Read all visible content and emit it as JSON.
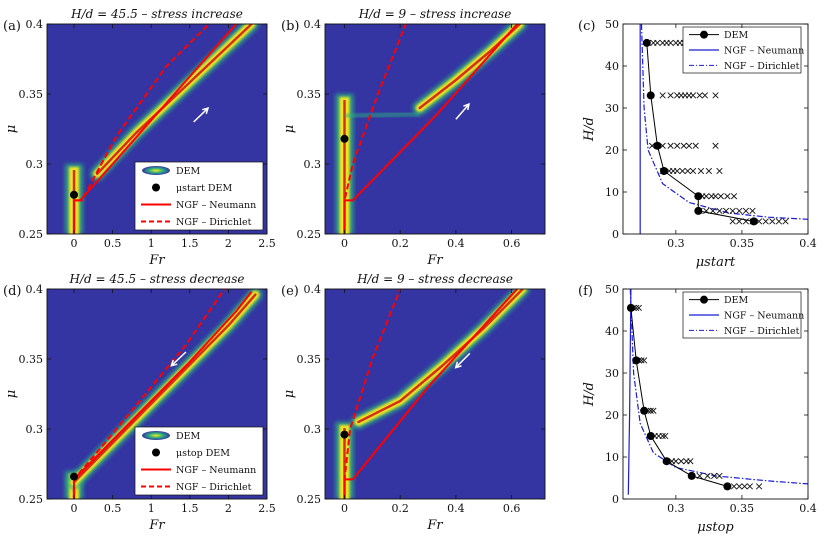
{
  "colors": {
    "background": "#3434a2",
    "dem_band": "#f5e71b",
    "dem_mid": "#2bb07f",
    "dem_core": "#d32f1d",
    "ngf_red": "#ff0000",
    "ngf_blue": "#1c1cd8",
    "arrow": "#ffffff"
  },
  "chart_data": [
    {
      "id": "a",
      "panel_label": "(a)",
      "type": "heatmap",
      "title": "H/d = 45.5 – stress increase",
      "xlabel": "Fr",
      "ylabel": "μ",
      "xlim": [
        -0.35,
        2.5
      ],
      "ylim": [
        0.25,
        0.4
      ],
      "xticks": [
        "0",
        "0.5",
        "1",
        "1.5",
        "2",
        "2.5"
      ],
      "xtick_values": [
        0,
        0.5,
        1,
        1.5,
        2,
        2.5
      ],
      "yticks": [
        "0.25",
        "0.3",
        "0.35",
        "0.4"
      ],
      "ytick_values": [
        0.25,
        0.3,
        0.35,
        0.4
      ],
      "dem_band": [
        [
          0.3,
          0.293
        ],
        [
          0.8,
          0.322
        ],
        [
          1.3,
          0.348
        ],
        [
          1.8,
          0.374
        ],
        [
          2.3,
          0.4
        ]
      ],
      "dem_vertical": {
        "x": 0,
        "y_from": 0.25,
        "y_to": 0.3
      },
      "mu_marker": {
        "x": 0,
        "y": 0.278
      },
      "neumann": [
        [
          0,
          0.25
        ],
        [
          0,
          0.274
        ],
        [
          0.08,
          0.274
        ],
        [
          0.5,
          0.3
        ],
        [
          1.3,
          0.35
        ],
        [
          2.1,
          0.4
        ]
      ],
      "dirichlet": [
        [
          0,
          0.25
        ],
        [
          0,
          0.274
        ],
        [
          0.1,
          0.274
        ],
        [
          0.55,
          0.32
        ],
        [
          1.2,
          0.37
        ],
        [
          1.75,
          0.4
        ]
      ],
      "arrow": {
        "from": [
          1.55,
          0.33
        ],
        "to": [
          1.85,
          0.346
        ]
      },
      "legend": [
        {
          "kind": "blob",
          "label": "DEM"
        },
        {
          "kind": "dot",
          "label": "μstart DEM"
        },
        {
          "kind": "solid",
          "label": "NGF – Neumann"
        },
        {
          "kind": "dash",
          "label": "NGF – Dirichlet"
        }
      ]
    },
    {
      "id": "b",
      "panel_label": "(b)",
      "type": "heatmap",
      "title": "H/d = 9 – stress increase",
      "xlabel": "Fr",
      "ylabel": "μ",
      "xlim": [
        -0.07,
        0.72
      ],
      "ylim": [
        0.25,
        0.4
      ],
      "xticks": [
        "0",
        "0.2",
        "0.4",
        "0.6"
      ],
      "xtick_values": [
        0,
        0.2,
        0.4,
        0.6
      ],
      "yticks": [
        "0.25",
        "0.3",
        "0.35",
        "0.4"
      ],
      "ytick_values": [
        0.25,
        0.3,
        0.35,
        0.4
      ],
      "dem_band": [
        [
          0.27,
          0.34
        ],
        [
          0.4,
          0.36
        ],
        [
          0.52,
          0.38
        ],
        [
          0.63,
          0.4
        ]
      ],
      "dem_plateau": [
        [
          0,
          0.334
        ],
        [
          0.27,
          0.336
        ]
      ],
      "dem_vertical": {
        "x": 0,
        "y_from": 0.25,
        "y_to": 0.35
      },
      "mu_marker": {
        "x": 0,
        "y": 0.318
      },
      "neumann": [
        [
          0,
          0.25
        ],
        [
          0,
          0.274
        ],
        [
          0.03,
          0.274
        ],
        [
          0.33,
          0.335
        ],
        [
          0.62,
          0.4
        ]
      ],
      "dirichlet": [
        [
          0,
          0.25
        ],
        [
          0,
          0.274
        ],
        [
          0.03,
          0.3
        ],
        [
          0.12,
          0.35
        ],
        [
          0.22,
          0.4
        ]
      ],
      "arrow": {
        "from": [
          0.4,
          0.332
        ],
        "to": [
          0.47,
          0.348
        ]
      }
    },
    {
      "id": "c",
      "panel_label": "(c)",
      "type": "scatter",
      "xlabel": "μstart",
      "ylabel": "H/d",
      "xlim": [
        0.26,
        0.4
      ],
      "ylim": [
        0,
        50
      ],
      "xticks": [
        "0.3",
        "0.35",
        "0.4"
      ],
      "xtick_values": [
        0.3,
        0.35,
        0.4
      ],
      "yticks": [
        "0",
        "10",
        "20",
        "30",
        "40",
        "50"
      ],
      "ytick_values": [
        0,
        10,
        20,
        30,
        40,
        50
      ],
      "dem_mean": {
        "x": [
          0.278,
          0.281,
          0.286,
          0.291,
          0.317,
          0.317,
          0.359
        ],
        "y": [
          45.5,
          33,
          21,
          15,
          9,
          5.5,
          3
        ]
      },
      "scatter_samples": [
        {
          "y": 45.5,
          "x": [
            0.279,
            0.283,
            0.286,
            0.29,
            0.293,
            0.296,
            0.3,
            0.303,
            0.306,
            0.31,
            0.313,
            0.316
          ]
        },
        {
          "y": 33,
          "x": [
            0.29,
            0.296,
            0.301,
            0.304,
            0.307,
            0.31,
            0.313,
            0.318,
            0.322,
            0.33
          ]
        },
        {
          "y": 21,
          "x": [
            0.282,
            0.286,
            0.29,
            0.296,
            0.301,
            0.306,
            0.31,
            0.315,
            0.33
          ]
        },
        {
          "y": 15,
          "x": [
            0.29,
            0.295,
            0.298,
            0.301,
            0.305,
            0.309,
            0.313,
            0.319,
            0.325,
            0.333
          ]
        },
        {
          "y": 9,
          "x": [
            0.317,
            0.32,
            0.323,
            0.327,
            0.33,
            0.334,
            0.339,
            0.344
          ]
        },
        {
          "y": 5.5,
          "x": [
            0.318,
            0.323,
            0.328,
            0.333,
            0.338,
            0.343,
            0.348,
            0.353,
            0.358
          ]
        },
        {
          "y": 3,
          "x": [
            0.343,
            0.348,
            0.353,
            0.358,
            0.363,
            0.368,
            0.373,
            0.378,
            0.383
          ]
        }
      ],
      "neumann_x": 0.273,
      "dirichlet": [
        [
          0.274,
          50
        ],
        [
          0.276,
          30
        ],
        [
          0.279,
          20
        ],
        [
          0.29,
          12
        ],
        [
          0.31,
          7.5
        ],
        [
          0.34,
          5
        ],
        [
          0.37,
          4
        ],
        [
          0.4,
          3.5
        ]
      ],
      "legend": [
        {
          "kind": "dotline",
          "label": "DEM"
        },
        {
          "kind": "solid",
          "label": "NGF – Neumann"
        },
        {
          "kind": "dashdot",
          "label": "NGF – Dirichlet"
        }
      ]
    },
    {
      "id": "d",
      "panel_label": "(d)",
      "type": "heatmap",
      "title": "H/d = 45.5 – stress decrease",
      "xlabel": "Fr",
      "ylabel": "μ",
      "xlim": [
        -0.35,
        2.5
      ],
      "ylim": [
        0.25,
        0.4
      ],
      "xticks": [
        "0",
        "0.5",
        "1",
        "1.5",
        "2",
        "2.5"
      ],
      "xtick_values": [
        0,
        0.5,
        1,
        1.5,
        2,
        2.5
      ],
      "yticks": [
        "0.25",
        "0.3",
        "0.35",
        "0.4"
      ],
      "ytick_values": [
        0.25,
        0.3,
        0.35,
        0.4
      ],
      "dem_band": [
        [
          0,
          0.262
        ],
        [
          0.5,
          0.29
        ],
        [
          1,
          0.318
        ],
        [
          1.5,
          0.346
        ],
        [
          2,
          0.374
        ],
        [
          2.35,
          0.396
        ]
      ],
      "dem_vertical": {
        "x": 0,
        "y_from": 0.25,
        "y_to": 0.27
      },
      "mu_marker": {
        "x": 0,
        "y": 0.266
      },
      "neumann": [
        [
          0,
          0.25
        ],
        [
          0,
          0.264
        ],
        [
          0.5,
          0.292
        ],
        [
          1,
          0.32
        ],
        [
          1.5,
          0.348
        ],
        [
          2.1,
          0.384
        ],
        [
          2.3,
          0.398
        ]
      ],
      "dirichlet": [
        [
          0,
          0.25
        ],
        [
          0,
          0.264
        ],
        [
          0.4,
          0.29
        ],
        [
          1,
          0.33
        ],
        [
          1.45,
          0.36
        ],
        [
          1.95,
          0.4
        ]
      ],
      "arrow": {
        "from": [
          1.45,
          0.355
        ],
        "to": [
          1.2,
          0.342
        ]
      },
      "legend": [
        {
          "kind": "blob",
          "label": "DEM"
        },
        {
          "kind": "dot",
          "label": "μstop DEM"
        },
        {
          "kind": "solid",
          "label": "NGF – Neumann"
        },
        {
          "kind": "dash",
          "label": "NGF – Dirichlet"
        }
      ]
    },
    {
      "id": "e",
      "panel_label": "(e)",
      "type": "heatmap",
      "title": "H/d = 9 – stress decrease",
      "xlabel": "Fr",
      "ylabel": "μ",
      "xlim": [
        -0.07,
        0.72
      ],
      "ylim": [
        0.25,
        0.4
      ],
      "xticks": [
        "0",
        "0.2",
        "0.4",
        "0.6"
      ],
      "xtick_values": [
        0,
        0.2,
        0.4,
        0.6
      ],
      "yticks": [
        "0.25",
        "0.3",
        "0.35",
        "0.4"
      ],
      "ytick_values": [
        0.25,
        0.3,
        0.35,
        0.4
      ],
      "dem_band": [
        [
          0.05,
          0.305
        ],
        [
          0.2,
          0.32
        ],
        [
          0.35,
          0.345
        ],
        [
          0.5,
          0.372
        ],
        [
          0.64,
          0.4
        ]
      ],
      "dem_vertical": {
        "x": 0,
        "y_from": 0.25,
        "y_to": 0.305
      },
      "mu_marker": {
        "x": 0,
        "y": 0.296
      },
      "neumann": [
        [
          0,
          0.25
        ],
        [
          0,
          0.264
        ],
        [
          0.03,
          0.264
        ],
        [
          0.3,
          0.33
        ],
        [
          0.62,
          0.4
        ]
      ],
      "dirichlet": [
        [
          0,
          0.25
        ],
        [
          0,
          0.264
        ],
        [
          0.02,
          0.3
        ],
        [
          0.1,
          0.35
        ],
        [
          0.2,
          0.4
        ]
      ],
      "arrow": {
        "from": [
          0.45,
          0.354
        ],
        "to": [
          0.38,
          0.34
        ]
      }
    },
    {
      "id": "f",
      "panel_label": "(f)",
      "type": "scatter",
      "xlabel": "μstop",
      "ylabel": "H/d",
      "xlim": [
        0.26,
        0.4
      ],
      "ylim": [
        0,
        50
      ],
      "xticks": [
        "0.3",
        "0.35",
        "0.4"
      ],
      "xtick_values": [
        0.3,
        0.35,
        0.4
      ],
      "yticks": [
        "0",
        "10",
        "20",
        "30",
        "40",
        "50"
      ],
      "ytick_values": [
        0,
        10,
        20,
        30,
        40,
        50
      ],
      "dem_mean": {
        "x": [
          0.266,
          0.27,
          0.276,
          0.281,
          0.293,
          0.312,
          0.339
        ],
        "y": [
          45.5,
          33,
          21,
          15,
          9,
          5.5,
          3
        ]
      },
      "scatter_samples": [
        {
          "y": 45.5,
          "x": [
            0.266,
            0.268,
            0.27,
            0.272
          ]
        },
        {
          "y": 33,
          "x": [
            0.27,
            0.272,
            0.274,
            0.276
          ]
        },
        {
          "y": 21,
          "x": [
            0.276,
            0.279,
            0.281,
            0.283
          ]
        },
        {
          "y": 15,
          "x": [
            0.281,
            0.284,
            0.287,
            0.29,
            0.292
          ]
        },
        {
          "y": 9,
          "x": [
            0.293,
            0.297,
            0.3,
            0.304,
            0.308,
            0.311
          ]
        },
        {
          "y": 5.5,
          "x": [
            0.312,
            0.318,
            0.324,
            0.329,
            0.333
          ]
        },
        {
          "y": 3,
          "x": [
            0.339,
            0.344,
            0.348,
            0.352,
            0.356,
            0.363
          ]
        }
      ],
      "neumann": [
        [
          0.264,
          1
        ],
        [
          0.265,
          20
        ],
        [
          0.266,
          50
        ]
      ],
      "dirichlet": [
        [
          0.2655,
          50
        ],
        [
          0.268,
          30
        ],
        [
          0.273,
          18
        ],
        [
          0.283,
          11
        ],
        [
          0.3,
          7.5
        ],
        [
          0.33,
          5.5
        ],
        [
          0.37,
          4.3
        ],
        [
          0.4,
          3.6
        ]
      ],
      "legend": [
        {
          "kind": "dotline",
          "label": "DEM"
        },
        {
          "kind": "solid",
          "label": "NGF – Neumann"
        },
        {
          "kind": "dashdot",
          "label": "NGF – Dirichlet"
        }
      ]
    }
  ]
}
